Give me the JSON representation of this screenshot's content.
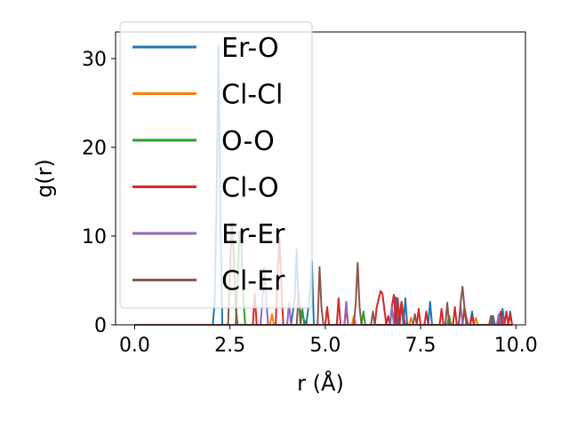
{
  "chart_data": {
    "type": "line",
    "xlabel": "r (Å)",
    "ylabel": "g(r)",
    "xlim": [
      -0.5,
      10.25
    ],
    "ylim": [
      0,
      33
    ],
    "xticks": [
      0.0,
      2.5,
      5.0,
      7.5,
      10.0
    ],
    "xtick_labels": [
      "0.0",
      "2.5",
      "5.0",
      "7.5",
      "10.0"
    ],
    "yticks": [
      0,
      10,
      20,
      30
    ],
    "ytick_labels": [
      "0",
      "10",
      "20",
      "30"
    ],
    "grid": false,
    "legend_position": "upper-left",
    "series": [
      {
        "name": "Er-O",
        "color": "#1f77b4",
        "x": [
          0.0,
          2.05,
          2.1,
          2.15,
          2.2,
          2.25,
          2.3,
          4.1,
          4.2,
          4.25,
          4.3,
          4.5,
          4.6,
          4.65,
          4.7,
          6.8,
          6.85,
          6.9,
          7.0,
          7.05,
          7.1,
          7.15,
          7.2,
          7.7,
          7.75,
          7.8,
          8.8,
          8.85,
          8.9,
          9.35,
          9.4,
          9.45,
          9.6,
          9.65,
          9.7,
          9.8,
          9.85,
          9.9
        ],
        "y": [
          0.0,
          0.0,
          2.6,
          14.0,
          31.5,
          12.0,
          0.0,
          0.0,
          3.0,
          8.5,
          2.0,
          0.0,
          3.5,
          7.2,
          0.0,
          0.0,
          3.1,
          0.0,
          2.6,
          0.0,
          3.0,
          0.0,
          0.0,
          0.0,
          2.6,
          0.0,
          0.0,
          1.5,
          0.0,
          0.0,
          1.0,
          0.0,
          0.0,
          1.8,
          0.0,
          0.0,
          1.5,
          0.0
        ]
      },
      {
        "name": "Cl-Cl",
        "color": "#ff7f0e",
        "x": [
          0.0,
          3.55,
          3.6,
          3.65,
          5.7,
          5.75,
          5.8,
          7.2,
          7.25,
          7.3,
          8.9,
          8.95,
          9.0,
          9.9
        ],
        "y": [
          0.0,
          0.0,
          1.2,
          0.0,
          0.0,
          1.0,
          0.0,
          0.0,
          0.8,
          0.0,
          0.0,
          0.8,
          0.0,
          0.0
        ]
      },
      {
        "name": "O-O",
        "color": "#2ca02c",
        "x": [
          0.0,
          2.65,
          2.7,
          2.75,
          2.8,
          2.85,
          2.9,
          4.35,
          4.4,
          4.45,
          5.95,
          6.0,
          6.05,
          8.2,
          8.25,
          8.3,
          9.9
        ],
        "y": [
          0.0,
          0.0,
          4.5,
          10.5,
          9.0,
          3.0,
          0.0,
          0.0,
          1.8,
          0.0,
          0.0,
          1.5,
          0.0,
          0.0,
          1.0,
          0.0,
          0.0
        ]
      },
      {
        "name": "Cl-O",
        "color": "#d62728",
        "x": [
          0.0,
          3.1,
          3.15,
          3.2,
          3.7,
          3.75,
          3.8,
          3.85,
          3.9,
          5.0,
          5.05,
          5.1,
          5.3,
          5.35,
          5.4,
          5.5,
          5.55,
          5.6,
          6.3,
          6.35,
          6.45,
          6.5,
          6.6,
          6.65,
          6.7,
          6.75,
          6.8,
          6.85,
          6.9,
          6.95,
          7.0,
          7.05,
          7.1,
          7.15,
          7.4,
          7.45,
          7.5,
          7.6,
          7.65,
          7.7,
          8.0,
          8.05,
          8.1,
          8.35,
          8.4,
          8.45,
          8.6,
          8.65,
          8.7,
          8.8,
          8.85,
          8.9,
          9.3,
          9.35,
          9.4,
          9.55,
          9.6,
          9.65,
          9.7,
          9.75,
          9.8,
          9.85,
          9.9
        ],
        "y": [
          0.0,
          0.0,
          3.5,
          0.0,
          0.0,
          6.0,
          9.8,
          4.0,
          0.0,
          0.0,
          2.0,
          0.0,
          0.0,
          3.0,
          0.0,
          0.0,
          1.8,
          0.0,
          0.0,
          2.0,
          3.8,
          3.5,
          0.0,
          1.0,
          0.0,
          2.2,
          3.4,
          0.0,
          3.0,
          0.0,
          2.6,
          1.0,
          0.0,
          0.0,
          0.0,
          1.8,
          0.0,
          0.0,
          1.5,
          0.0,
          0.0,
          1.8,
          0.0,
          0.0,
          2.0,
          0.0,
          0.0,
          2.0,
          0.0,
          0.0,
          1.0,
          0.0,
          0.0,
          1.0,
          0.0,
          0.0,
          1.5,
          0.0,
          0.0,
          1.5,
          0.0,
          1.2,
          0.0
        ]
      },
      {
        "name": "Er-Er",
        "color": "#9467bd",
        "x": [
          0.0,
          3.3,
          3.35,
          3.4,
          3.45,
          3.5,
          4.0,
          4.05,
          4.1,
          5.5,
          5.55,
          5.6,
          6.7,
          6.75,
          6.8,
          8.5,
          8.55,
          8.6,
          9.5,
          9.55,
          9.6,
          9.9
        ],
        "y": [
          0.0,
          0.0,
          2.5,
          6.5,
          3.0,
          0.0,
          0.0,
          2.5,
          0.0,
          0.0,
          2.6,
          0.0,
          0.0,
          2.0,
          0.0,
          0.0,
          2.2,
          0.0,
          0.0,
          1.2,
          0.0,
          0.0
        ]
      },
      {
        "name": "Cl-Er",
        "color": "#8c564b",
        "x": [
          0.0,
          2.45,
          2.5,
          2.55,
          2.6,
          2.65,
          2.7,
          4.25,
          4.3,
          4.35,
          4.8,
          4.85,
          4.9,
          4.95,
          5.75,
          5.8,
          5.85,
          5.9,
          5.95,
          6.2,
          6.25,
          6.3,
          7.3,
          7.35,
          7.4,
          8.15,
          8.2,
          8.25,
          8.5,
          8.55,
          8.6,
          8.65,
          8.7,
          8.75,
          9.3,
          9.35,
          9.4,
          9.9
        ],
        "y": [
          0.0,
          0.0,
          6.0,
          11.5,
          8.0,
          2.0,
          0.0,
          0.0,
          3.5,
          0.0,
          0.0,
          6.5,
          2.0,
          0.0,
          0.0,
          2.5,
          7.0,
          2.0,
          0.0,
          0.0,
          1.5,
          0.0,
          0.0,
          1.2,
          0.0,
          0.0,
          2.5,
          0.0,
          0.0,
          2.5,
          4.3,
          2.0,
          0.8,
          0.0,
          0.0,
          1.0,
          0.0,
          0.0
        ]
      }
    ]
  }
}
